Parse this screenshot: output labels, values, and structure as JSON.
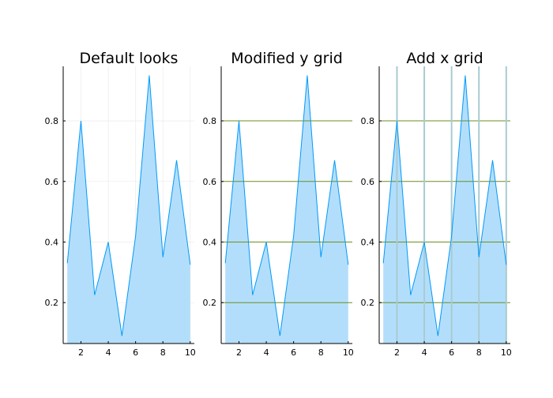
{
  "chart_data": [
    {
      "type": "area",
      "title": "Default looks",
      "x": [
        1,
        2,
        3,
        4,
        5,
        6,
        7,
        8,
        9,
        10
      ],
      "series": [
        {
          "values": [
            0.33,
            0.8,
            0.225,
            0.4,
            0.09,
            0.42,
            0.95,
            0.35,
            0.67,
            0.325
          ]
        }
      ],
      "xlim": [
        0.7,
        10.3
      ],
      "ylim": [
        0.065,
        0.98
      ],
      "xticks": [
        2,
        4,
        6,
        8,
        10
      ],
      "yticks": [
        0.2,
        0.4,
        0.6,
        0.8
      ],
      "xtick_labels": [
        "2",
        "4",
        "6",
        "8",
        "10"
      ],
      "ytick_labels": [
        "0.2",
        "0.4",
        "0.6",
        "0.8"
      ],
      "grid": {
        "x": false,
        "y": false,
        "faint": true
      },
      "xlabel": "",
      "ylabel": ""
    },
    {
      "type": "area",
      "title": "Modified y grid",
      "x": [
        1,
        2,
        3,
        4,
        5,
        6,
        7,
        8,
        9,
        10
      ],
      "series": [
        {
          "values": [
            0.33,
            0.8,
            0.225,
            0.4,
            0.09,
            0.42,
            0.95,
            0.35,
            0.67,
            0.325
          ]
        }
      ],
      "xlim": [
        0.7,
        10.3
      ],
      "ylim": [
        0.065,
        0.98
      ],
      "xticks": [
        2,
        4,
        6,
        8,
        10
      ],
      "yticks": [
        0.2,
        0.4,
        0.6,
        0.8
      ],
      "xtick_labels": [
        "2",
        "4",
        "6",
        "8",
        "10"
      ],
      "ytick_labels": [
        "0.2",
        "0.4",
        "0.6",
        "0.8"
      ],
      "grid": {
        "x": false,
        "y": true,
        "faint": false
      },
      "xlabel": "",
      "ylabel": ""
    },
    {
      "type": "area",
      "title": "Add x grid",
      "x": [
        1,
        2,
        3,
        4,
        5,
        6,
        7,
        8,
        9,
        10
      ],
      "series": [
        {
          "values": [
            0.33,
            0.8,
            0.225,
            0.4,
            0.09,
            0.42,
            0.95,
            0.35,
            0.67,
            0.325
          ]
        }
      ],
      "xlim": [
        0.7,
        10.3
      ],
      "ylim": [
        0.065,
        0.98
      ],
      "xticks": [
        2,
        4,
        6,
        8,
        10
      ],
      "yticks": [
        0.2,
        0.4,
        0.6,
        0.8
      ],
      "xtick_labels": [
        "2",
        "4",
        "6",
        "8",
        "10"
      ],
      "ytick_labels": [
        "0.2",
        "0.4",
        "0.6",
        "0.8"
      ],
      "grid": {
        "x": true,
        "y": true,
        "faint": false
      },
      "xlabel": "",
      "ylabel": ""
    }
  ],
  "colors": {
    "line": "#009AFA",
    "fill": "#B3DEFB",
    "y_grid": "#6B8E23",
    "x_grid": "#A8CBD0",
    "faint_grid": "#EDEDED",
    "axis": "#000000"
  }
}
